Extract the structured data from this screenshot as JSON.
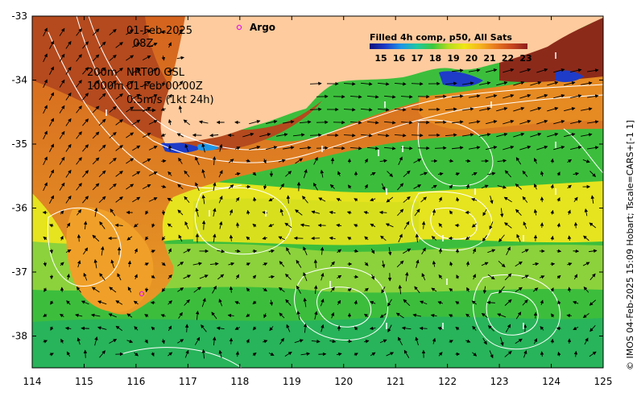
{
  "map": {
    "date": "01-Feb-2025",
    "hour": "08Z",
    "contour_label_1": "200m",
    "contour_label_2": "1000m",
    "altimetry_product": "NRT00 GSL",
    "altimetry_time": "01-Feb 00:00Z",
    "velocity_scale_label": "0.5m/s (1kt 24h)",
    "argo_label": "Argo",
    "colorbar_title": "Filled 4h comp, p50, All Sats",
    "colorbar_ticks": [
      "15",
      "16",
      "17",
      "18",
      "19",
      "20",
      "21",
      "22",
      "23"
    ],
    "colorbar_colors": [
      "#10107a",
      "#1e3cc8",
      "#1e96e6",
      "#1ec8a0",
      "#3cc83c",
      "#b4dc1e",
      "#f0e614",
      "#f5b41e",
      "#e6781e",
      "#c8461e",
      "#8c1e1e"
    ],
    "lon_ticks": [
      "114",
      "115",
      "116",
      "117",
      "118",
      "119",
      "120",
      "121",
      "122",
      "123",
      "124",
      "125"
    ],
    "lat_ticks": [
      "-33",
      "-34",
      "-35",
      "-36",
      "-37",
      "-38"
    ],
    "credit": "© IMOS 04-Feb-2025 15:09 Hobart; Tscale=CARS+[-1 1]",
    "land_color": "#fdcb9e",
    "argo_color": "#e020e0",
    "contour_color": "#ffffff"
  }
}
